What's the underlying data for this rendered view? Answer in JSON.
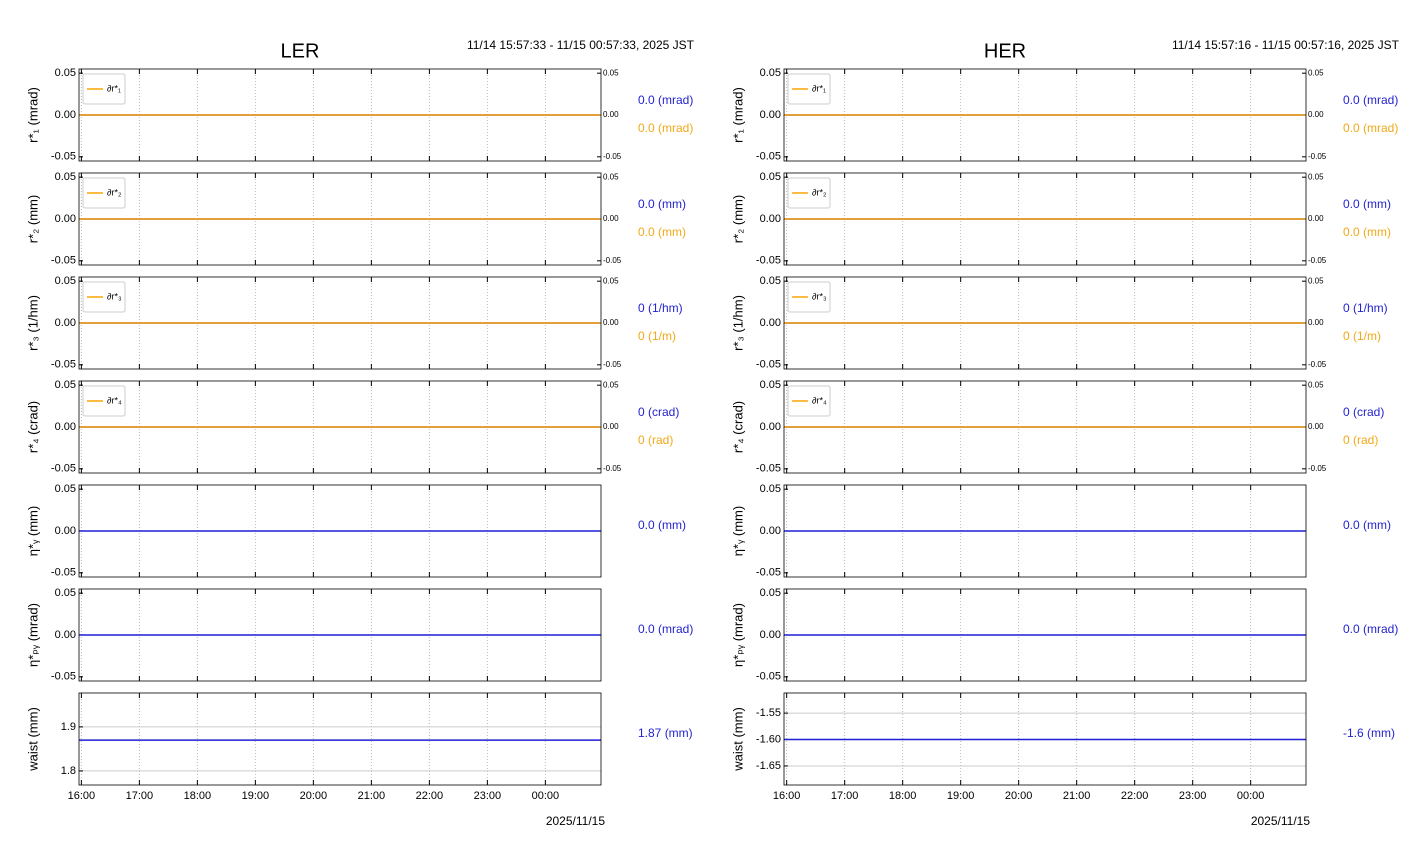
{
  "chart_data": [
    {
      "type": "line",
      "title": "LER",
      "subtitle": "11/14 15:57:33 - 11/15 00:57:33, 2025 JST",
      "ylabel": "r*₁ (mrad)",
      "x": [
        15.959,
        24.959
      ],
      "xlim": [
        15.959,
        24.959
      ],
      "ylim": [
        -0.055,
        0.055
      ],
      "yticks": [
        -0.05,
        {
          "value": 0,
          "label": "0.00"
        },
        0.05
      ],
      "y2lim": [
        -0.055,
        0.055
      ],
      "y2ticks": [
        -0.05,
        {
          "value": 0,
          "label": "0.00"
        },
        0.05
      ],
      "legend": "upper left",
      "xgrid": true,
      "ygrid": false,
      "series": [
        {
          "color": "#1f1fd6",
          "values": [
            0,
            0
          ],
          "readout": "0.0 (mrad)"
        },
        {
          "name": "∂r*₁",
          "color": "#ffa500",
          "axis": "y2",
          "values": [
            0,
            0
          ],
          "readout": "0.0 (mrad)"
        }
      ]
    },
    {
      "type": "line",
      "ylabel": "r*₂ (mm)",
      "x": [
        15.959,
        24.959
      ],
      "xlim": [
        15.959,
        24.959
      ],
      "ylim": [
        -0.055,
        0.055
      ],
      "yticks": [
        -0.05,
        {
          "value": 0,
          "label": "0.00"
        },
        0.05
      ],
      "y2lim": [
        -0.055,
        0.055
      ],
      "y2ticks": [
        -0.05,
        {
          "value": 0,
          "label": "0.00"
        },
        0.05
      ],
      "legend": "upper left",
      "xgrid": true,
      "ygrid": false,
      "series": [
        {
          "color": "#1f1fd6",
          "values": [
            0,
            0
          ],
          "readout": "0.0 (mm)"
        },
        {
          "name": "∂r*₂",
          "color": "#ffa500",
          "axis": "y2",
          "values": [
            0,
            0
          ],
          "readout": "0.0 (mm)"
        }
      ]
    },
    {
      "type": "line",
      "ylabel": "r*₃ (1/hm)",
      "x": [
        15.959,
        24.959
      ],
      "xlim": [
        15.959,
        24.959
      ],
      "ylim": [
        -0.055,
        0.055
      ],
      "yticks": [
        -0.05,
        {
          "value": 0,
          "label": "0.00"
        },
        0.05
      ],
      "y2lim": [
        -0.055,
        0.055
      ],
      "y2ticks": [
        -0.05,
        {
          "value": 0,
          "label": "0.00"
        },
        0.05
      ],
      "legend": "upper left",
      "xgrid": true,
      "ygrid": false,
      "series": [
        {
          "color": "#1f1fd6",
          "values": [
            0,
            0
          ],
          "readout": "0 (1/hm)"
        },
        {
          "name": "∂r*₃",
          "color": "#ffa500",
          "axis": "y2",
          "values": [
            0,
            0
          ],
          "readout": "0 (1/m)"
        }
      ]
    },
    {
      "type": "line",
      "ylabel": "r*₄ (crad)",
      "x": [
        15.959,
        24.959
      ],
      "xlim": [
        15.959,
        24.959
      ],
      "ylim": [
        -0.055,
        0.055
      ],
      "yticks": [
        -0.05,
        {
          "value": 0,
          "label": "0.00"
        },
        0.05
      ],
      "y2lim": [
        -0.055,
        0.055
      ],
      "y2ticks": [
        -0.05,
        {
          "value": 0,
          "label": "0.00"
        },
        0.05
      ],
      "legend": "upper left",
      "xgrid": true,
      "ygrid": false,
      "series": [
        {
          "color": "#1f1fd6",
          "values": [
            0,
            0
          ],
          "readout": "0 (crad)"
        },
        {
          "name": "∂r*₄",
          "color": "#ffa500",
          "axis": "y2",
          "values": [
            0,
            0
          ],
          "readout": "0 (rad)"
        }
      ]
    },
    {
      "type": "line",
      "ylabel": "η*ᵧ (mm)",
      "x": [
        15.959,
        24.959
      ],
      "xlim": [
        15.959,
        24.959
      ],
      "ylim": [
        -0.055,
        0.055
      ],
      "yticks": [
        -0.05,
        {
          "value": 0,
          "label": "0.00"
        },
        0.05
      ],
      "xgrid": true,
      "ygrid": false,
      "series": [
        {
          "color": "#1f1fd6",
          "values": [
            0,
            0
          ],
          "readout": "0.0 (mm)"
        }
      ]
    },
    {
      "type": "line",
      "ylabel": "η*ₚᵧ (mrad)",
      "x": [
        15.959,
        24.959
      ],
      "xlim": [
        15.959,
        24.959
      ],
      "ylim": [
        -0.055,
        0.055
      ],
      "yticks": [
        -0.05,
        {
          "value": 0,
          "label": "0.00"
        },
        0.05
      ],
      "xgrid": true,
      "ygrid": false,
      "series": [
        {
          "color": "#1f1fd6",
          "values": [
            0,
            0
          ],
          "readout": "0.0 (mrad)"
        }
      ]
    },
    {
      "type": "line",
      "ylabel": "waist (mm)",
      "xlabel": "2025/11/15",
      "x": [
        15.959,
        24.959
      ],
      "xlim": [
        15.959,
        24.959
      ],
      "xticks": [
        {
          "value": 16,
          "label": "16:00"
        },
        {
          "value": 17,
          "label": "17:00"
        },
        {
          "value": 18,
          "label": "18:00"
        },
        {
          "value": 19,
          "label": "19:00"
        },
        {
          "value": 20,
          "label": "20:00"
        },
        {
          "value": 21,
          "label": "21:00"
        },
        {
          "value": 22,
          "label": "22:00"
        },
        {
          "value": 23,
          "label": "23:00"
        },
        {
          "value": 24,
          "label": "00:00"
        }
      ],
      "ylim": [
        1.768,
        1.977
      ],
      "yticks": [
        1.8,
        1.9
      ],
      "xgrid": true,
      "ygrid": true,
      "series": [
        {
          "color": "#1f1fd6",
          "values": [
            1.87,
            1.87
          ],
          "readout": "1.87 (mm)"
        }
      ]
    },
    {
      "type": "line",
      "title": "HER",
      "subtitle": "11/14 15:57:16 - 11/15 00:57:16, 2025 JST",
      "ylabel": "r*₁ (mrad)",
      "x": [
        15.954,
        24.954
      ],
      "xlim": [
        15.954,
        24.954
      ],
      "ylim": [
        -0.055,
        0.055
      ],
      "yticks": [
        -0.05,
        {
          "value": 0,
          "label": "0.00"
        },
        0.05
      ],
      "y2lim": [
        -0.055,
        0.055
      ],
      "y2ticks": [
        -0.05,
        {
          "value": 0,
          "label": "0.00"
        },
        0.05
      ],
      "legend": "upper left",
      "xgrid": true,
      "ygrid": false,
      "series": [
        {
          "color": "#1f1fd6",
          "values": [
            0,
            0
          ],
          "readout": "0.0 (mrad)"
        },
        {
          "name": "∂r*₁",
          "color": "#ffa500",
          "axis": "y2",
          "values": [
            0,
            0
          ],
          "readout": "0.0 (mrad)"
        }
      ]
    },
    {
      "type": "line",
      "ylabel": "r*₂ (mm)",
      "x": [
        15.954,
        24.954
      ],
      "xlim": [
        15.954,
        24.954
      ],
      "ylim": [
        -0.055,
        0.055
      ],
      "yticks": [
        -0.05,
        {
          "value": 0,
          "label": "0.00"
        },
        0.05
      ],
      "y2lim": [
        -0.055,
        0.055
      ],
      "y2ticks": [
        -0.05,
        {
          "value": 0,
          "label": "0.00"
        },
        0.05
      ],
      "legend": "upper left",
      "xgrid": true,
      "ygrid": false,
      "series": [
        {
          "color": "#1f1fd6",
          "values": [
            0,
            0
          ],
          "readout": "0.0 (mm)"
        },
        {
          "name": "∂r*₂",
          "color": "#ffa500",
          "axis": "y2",
          "values": [
            0,
            0
          ],
          "readout": "0.0 (mm)"
        }
      ]
    },
    {
      "type": "line",
      "ylabel": "r*₃ (1/hm)",
      "x": [
        15.954,
        24.954
      ],
      "xlim": [
        15.954,
        24.954
      ],
      "ylim": [
        -0.055,
        0.055
      ],
      "yticks": [
        -0.05,
        {
          "value": 0,
          "label": "0.00"
        },
        0.05
      ],
      "y2lim": [
        -0.055,
        0.055
      ],
      "y2ticks": [
        -0.05,
        {
          "value": 0,
          "label": "0.00"
        },
        0.05
      ],
      "legend": "upper left",
      "xgrid": true,
      "ygrid": false,
      "series": [
        {
          "color": "#1f1fd6",
          "values": [
            0,
            0
          ],
          "readout": "0 (1/hm)"
        },
        {
          "name": "∂r*₃",
          "color": "#ffa500",
          "axis": "y2",
          "values": [
            0,
            0
          ],
          "readout": "0 (1/m)"
        }
      ]
    },
    {
      "type": "line",
      "ylabel": "r*₄ (crad)",
      "x": [
        15.954,
        24.954
      ],
      "xlim": [
        15.954,
        24.954
      ],
      "ylim": [
        -0.055,
        0.055
      ],
      "yticks": [
        -0.05,
        {
          "value": 0,
          "label": "0.00"
        },
        0.05
      ],
      "y2lim": [
        -0.055,
        0.055
      ],
      "y2ticks": [
        -0.05,
        {
          "value": 0,
          "label": "0.00"
        },
        0.05
      ],
      "legend": "upper left",
      "xgrid": true,
      "ygrid": false,
      "series": [
        {
          "color": "#1f1fd6",
          "values": [
            0,
            0
          ],
          "readout": "0 (crad)"
        },
        {
          "name": "∂r*₄",
          "color": "#ffa500",
          "axis": "y2",
          "values": [
            0,
            0
          ],
          "readout": "0 (rad)"
        }
      ]
    },
    {
      "type": "line",
      "ylabel": "η*ᵧ (mm)",
      "x": [
        15.954,
        24.954
      ],
      "xlim": [
        15.954,
        24.954
      ],
      "ylim": [
        -0.055,
        0.055
      ],
      "yticks": [
        -0.05,
        {
          "value": 0,
          "label": "0.00"
        },
        0.05
      ],
      "xgrid": true,
      "ygrid": false,
      "series": [
        {
          "color": "#1f1fd6",
          "values": [
            0,
            0
          ],
          "readout": "0.0 (mm)"
        }
      ]
    },
    {
      "type": "line",
      "ylabel": "η*ₚᵧ (mrad)",
      "x": [
        15.954,
        24.954
      ],
      "xlim": [
        15.954,
        24.954
      ],
      "ylim": [
        -0.055,
        0.055
      ],
      "yticks": [
        -0.05,
        {
          "value": 0,
          "label": "0.00"
        },
        0.05
      ],
      "xgrid": true,
      "ygrid": false,
      "series": [
        {
          "color": "#1f1fd6",
          "values": [
            0,
            0
          ],
          "readout": "0.0 (mrad)"
        }
      ]
    },
    {
      "type": "line",
      "ylabel": "waist (mm)",
      "xlabel": "2025/11/15",
      "x": [
        15.954,
        24.954
      ],
      "xlim": [
        15.954,
        24.954
      ],
      "xticks": [
        {
          "value": 16,
          "label": "16:00"
        },
        {
          "value": 17,
          "label": "17:00"
        },
        {
          "value": 18,
          "label": "18:00"
        },
        {
          "value": 19,
          "label": "19:00"
        },
        {
          "value": 20,
          "label": "20:00"
        },
        {
          "value": 21,
          "label": "21:00"
        },
        {
          "value": 22,
          "label": "22:00"
        },
        {
          "value": 23,
          "label": "23:00"
        },
        {
          "value": 24,
          "label": "00:00"
        }
      ],
      "ylim": [
        -1.686,
        -1.512
      ],
      "yticks": [
        {
          "value": -1.65,
          "label": "-1.65"
        },
        {
          "value": -1.6,
          "label": "-1.60"
        },
        {
          "value": -1.55,
          "label": "-1.55"
        }
      ],
      "xgrid": true,
      "ygrid": true,
      "series": [
        {
          "color": "#1f1fd6",
          "values": [
            -1.6,
            -1.6
          ],
          "readout": "-1.6 (mm)"
        }
      ]
    }
  ]
}
